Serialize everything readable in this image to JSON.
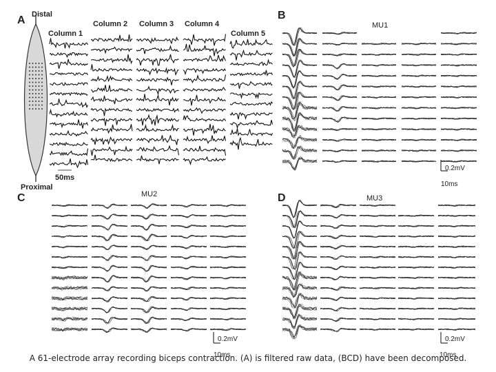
{
  "panels": [
    {
      "label": "A",
      "distal": "Distal",
      "proximal": "Proximal",
      "columns": [
        "Column 1",
        "Column 2",
        "Column 3",
        "Column 4",
        "Column 5"
      ],
      "scale_time": "50ms"
    },
    {
      "label": "B",
      "title": "MU1",
      "scale_amp": "0.2mV",
      "scale_time": "10ms"
    },
    {
      "label": "C",
      "title": "MU2",
      "scale_amp": "0.2mV",
      "scale_time": "10ms"
    },
    {
      "label": "D",
      "title": "MU3",
      "scale_amp": "0.2mV",
      "scale_time": "10ms"
    }
  ],
  "caption": "A 61-electrode array recording biceps contraction. (A) is filtered raw data, (BCD) have been decomposed."
}
